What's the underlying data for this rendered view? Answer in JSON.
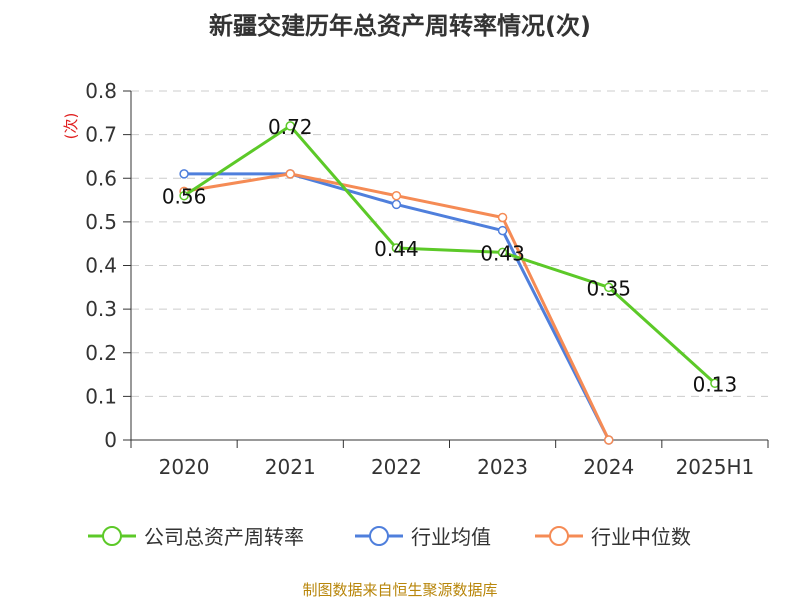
{
  "chart_data": {
    "type": "line",
    "title": "新疆交建历年总资产周转率情况(次)",
    "ylabel": "(次)",
    "xlabel": "",
    "categories": [
      "2020",
      "2021",
      "2022",
      "2023",
      "2024",
      "2025H1"
    ],
    "ylim": [
      0,
      0.8
    ],
    "yticks": [
      "0",
      "0.1",
      "0.2",
      "0.3",
      "0.4",
      "0.5",
      "0.6",
      "0.7",
      "0.8"
    ],
    "grid": true,
    "legend_position": "bottom",
    "series": [
      {
        "name": "公司总资产周转率",
        "color": "#5cc928",
        "values": [
          0.56,
          0.72,
          0.44,
          0.43,
          0.35,
          0.13
        ],
        "labels": [
          "0.56",
          "0.72",
          "0.44",
          "0.43",
          "0.35",
          "0.13"
        ]
      },
      {
        "name": "行业均值",
        "color": "#4f7fdc",
        "values": [
          0.61,
          0.61,
          0.54,
          0.48,
          0.0,
          null
        ]
      },
      {
        "name": "行业中位数",
        "color": "#f58b55",
        "values": [
          0.57,
          0.61,
          0.56,
          0.51,
          0.0,
          null
        ]
      }
    ]
  },
  "source": "制图数据来自恒生聚源数据库"
}
